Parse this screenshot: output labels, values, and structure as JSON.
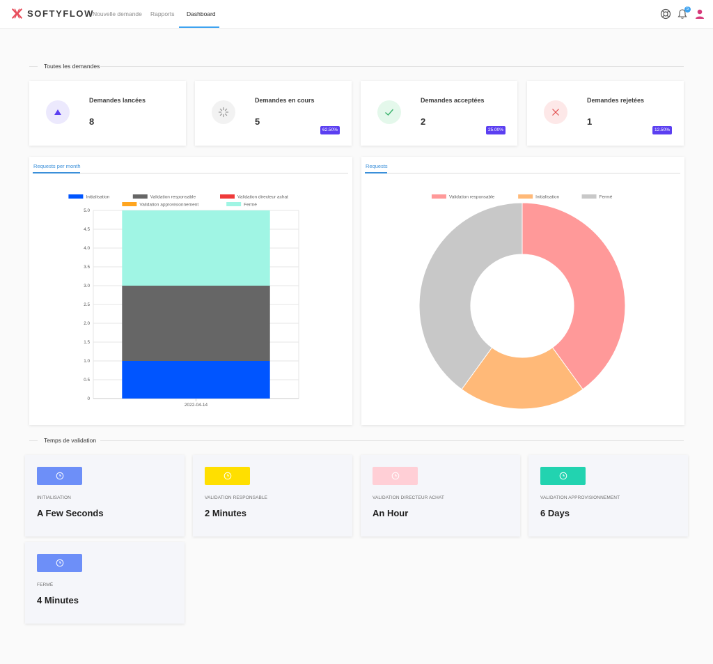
{
  "brand": {
    "name": "SOFTYFLOW"
  },
  "nav": {
    "items": [
      {
        "label": "Nouvelle demande"
      },
      {
        "label": "Rapports"
      },
      {
        "label": "Dashboard"
      }
    ]
  },
  "header": {
    "help_icon": "lifebuoy-icon",
    "notifications_icon": "bell-icon",
    "notifications_count": "5",
    "user_icon": "user-icon"
  },
  "sections": {
    "all_requests": "Toutes les demandes",
    "validation_time": "Temps de validation"
  },
  "stats": [
    {
      "title": "Demandes lancées",
      "value": "8",
      "percent": "",
      "icon": "triangle-up-icon",
      "icon_color": "#5b3ff1",
      "icon_bg": "#ece9fd"
    },
    {
      "title": "Demandes en cours",
      "value": "5",
      "percent": "62.50%",
      "icon": "spinner-icon",
      "icon_color": "#9a9a9a",
      "icon_bg": "#f2f2f2"
    },
    {
      "title": "Demandes acceptées",
      "value": "2",
      "percent": "25.00%",
      "icon": "check-icon",
      "icon_color": "#3cb46e",
      "icon_bg": "#e4f8eb"
    },
    {
      "title": "Demandes rejetées",
      "value": "1",
      "percent": "12.50%",
      "icon": "x-icon",
      "icon_color": "#e04b4b",
      "icon_bg": "#fde8e8"
    }
  ],
  "charts": {
    "bar_tab": "Requests per month",
    "pie_tab": "Requests"
  },
  "chart_data": [
    {
      "type": "bar",
      "stacked": true,
      "categories": [
        "2022-04-14"
      ],
      "series": [
        {
          "name": "Initialisation",
          "values": [
            1
          ],
          "color": "#0055ff"
        },
        {
          "name": "Validation responsable",
          "values": [
            2
          ],
          "color": "#666666"
        },
        {
          "name": "Validation directeur achat",
          "values": [
            0
          ],
          "color": "#ef3a3a"
        },
        {
          "name": "Validation approvisionnement",
          "values": [
            0
          ],
          "color": "#ffa51f"
        },
        {
          "name": "Fermé",
          "values": [
            2
          ],
          "color": "#a0f5e4"
        }
      ],
      "ylim": [
        0,
        5
      ],
      "yticks": [
        "5.0",
        "4.5",
        "4.0",
        "3.5",
        "3.0",
        "2.5",
        "2.0",
        "1.5",
        "1.0",
        "0.5",
        "0"
      ],
      "grid": true,
      "legend": "top"
    },
    {
      "type": "pie",
      "donut": true,
      "labels": [
        "Validation responsable",
        "Initialisation",
        "Fermé"
      ],
      "values": [
        2,
        1,
        2
      ],
      "colors": [
        "#ff9999",
        "#ffb978",
        "#c8c8c8"
      ],
      "legend": "top"
    }
  ],
  "validation_times": [
    {
      "label": "INITIALISATION",
      "value": "A Few Seconds",
      "color": "#6d8ff8",
      "icon": "clock-icon"
    },
    {
      "label": "VALIDATION RESPONSABLE",
      "value": "2 Minutes",
      "color": "#ffdf00",
      "icon": "clock-icon"
    },
    {
      "label": "VALIDATION DIRECTEUR ACHAT",
      "value": "An Hour",
      "color": "#ffcfd6",
      "icon": "clock-icon"
    },
    {
      "label": "VALIDATION APPROVISIONNEMENT",
      "value": "6 Days",
      "color": "#22d3b0",
      "icon": "clock-icon"
    },
    {
      "label": "FERMÉ",
      "value": "4 Minutes",
      "color": "#6d8ff8",
      "icon": "clock-icon"
    }
  ]
}
